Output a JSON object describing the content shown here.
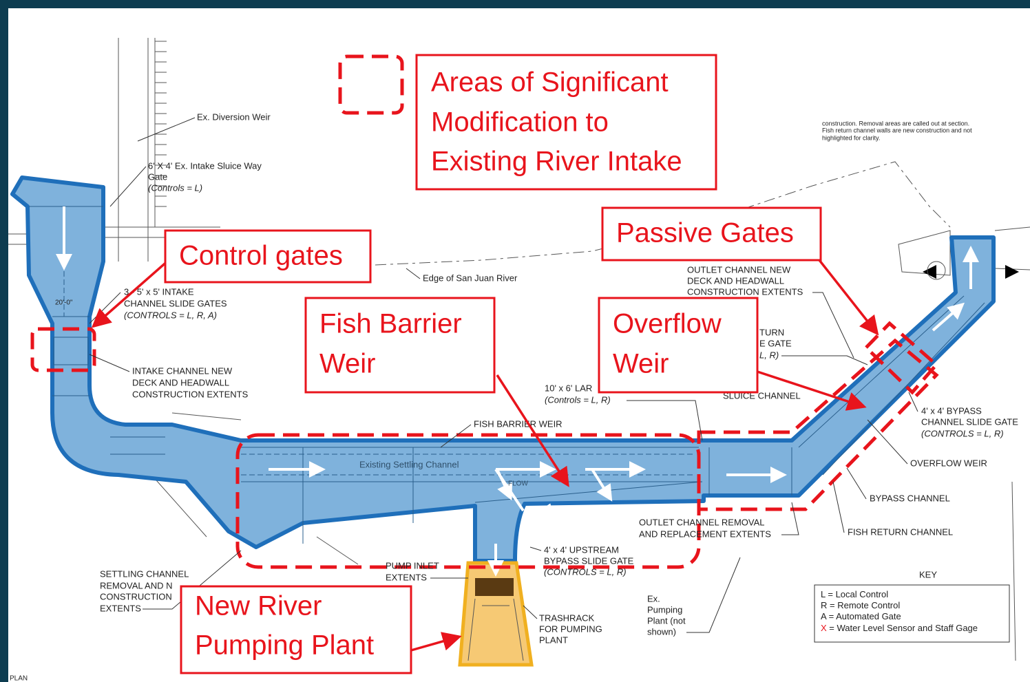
{
  "callouts": {
    "modification": [
      "Areas of Significant",
      "Modification to",
      "Existing River Intake"
    ],
    "control_gates": "Control gates",
    "passive_gates": "Passive Gates",
    "fish_barrier": [
      "Fish Barrier",
      "Weir"
    ],
    "overflow": [
      "Overflow",
      "Weir"
    ],
    "pumping_plant": [
      "New River",
      "Pumping Plant"
    ]
  },
  "labels": {
    "diversion_weir": "Ex. Diversion Weir",
    "sluice_gate": [
      "6' X 4' Ex. Intake Sluice Way",
      "Gate",
      "(Controls = L)"
    ],
    "river_edge": "Edge of San Juan River",
    "intake_gates": [
      "3 - 5' x 5' INTAKE",
      "CHANNEL SLIDE GATES",
      "(CONTROLS = L, R, A)"
    ],
    "intake_deck": [
      "INTAKE CHANNEL NEW",
      "DECK AND HEADWALL",
      "CONSTRUCTION EXTENTS"
    ],
    "width_dim": "20'-0\"",
    "settling_channel": "Existing Settling Channel",
    "flow": "FLOW",
    "fish_barrier_weir": "FISH BARRIER WEIR",
    "lar_gate": [
      "10' x 6' LAR",
      "(Controls = L, R)"
    ],
    "outlet_deck": [
      "OUTLET CHANNEL NEW",
      "DECK AND HEADWALL",
      "CONSTRUCTION EXTENTS"
    ],
    "return_gate": [
      "TURN",
      "E GATE",
      "L, R)"
    ],
    "sluice_channel": "SLUICE CHANNEL",
    "bypass_gate": [
      "4' x 4' BYPASS",
      "CHANNEL SLIDE GATE",
      "(CONTROLS = L, R)"
    ],
    "overflow_weir": "OVERFLOW WEIR",
    "bypass_channel": "BYPASS CHANNEL",
    "fish_return": "FISH RETURN CHANNEL",
    "outlet_removal": [
      "OUTLET CHANNEL REMOVAL",
      "AND REPLACEMENT EXTENTS"
    ],
    "upstream_gate": [
      "4' x 4' UPSTREAM",
      "BYPASS SLIDE GATE",
      "(CONTROLS = L, R)"
    ],
    "pump_inlet": [
      "PUMP INLET",
      "EXTENTS"
    ],
    "settling_removal": [
      "SETTLING CHANNEL",
      "REMOVAL AND N",
      "CONSTRUCTION",
      "EXTENTS"
    ],
    "trashrack": [
      "TRASHRACK",
      "FOR PUMPING",
      "PLANT"
    ],
    "ex_pumping": [
      "Ex.",
      "Pumping",
      "Plant (not",
      "shown)"
    ]
  },
  "note": [
    "construction.  Removal areas are called out at section.",
    "Fish return channel walls are new construction and not",
    "highlighted for clarity."
  ],
  "key": {
    "title": "KEY",
    "entries": [
      {
        "symbol": "L",
        "text": "= Local Control"
      },
      {
        "symbol": "R",
        "text": "= Remote Control"
      },
      {
        "symbol": "A",
        "text": "= Automated Gate"
      },
      {
        "symbol": "X",
        "text": "= Water Level Sensor and Staff Gage"
      }
    ]
  },
  "sheet_label": "PLAN"
}
